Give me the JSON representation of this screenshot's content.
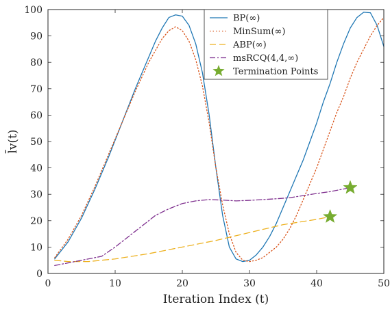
{
  "chart_data": {
    "type": "line",
    "xlabel": "Iteration Index (t)",
    "ylabel": "l̄v(t)",
    "xlim": [
      0,
      50
    ],
    "ylim": [
      0,
      100
    ],
    "xticks": [
      "0",
      "10",
      "20",
      "30",
      "40",
      "50"
    ],
    "yticks": [
      "0",
      "10",
      "20",
      "30",
      "40",
      "50",
      "60",
      "70",
      "80",
      "90",
      "100"
    ],
    "grid": false,
    "legend_position": "top-right",
    "series": [
      {
        "name": "BP(∞)",
        "color": "#1f77b4",
        "dash": "solid",
        "x": [
          1,
          3,
          5,
          7,
          9,
          11,
          13,
          15,
          16,
          17,
          18,
          19,
          20,
          21,
          22,
          23,
          24,
          25,
          26,
          27,
          28,
          29,
          30,
          31,
          32,
          33,
          34,
          35,
          36,
          37,
          38,
          39,
          40,
          41,
          42,
          43,
          44,
          45,
          46,
          47,
          48,
          49,
          50
        ],
        "y": [
          5.5,
          12,
          21,
          32,
          44,
          57,
          70,
          82,
          88,
          93,
          97,
          98,
          97.5,
          94,
          87,
          76,
          60,
          40,
          22,
          10,
          5.5,
          4.5,
          5,
          7,
          10,
          14,
          19,
          25,
          31,
          37,
          43,
          50,
          57,
          65,
          72,
          80,
          87,
          93,
          97,
          99,
          98.8,
          94,
          86
        ]
      },
      {
        "name": "MinSum(∞)",
        "color": "#d9541a",
        "dash": "dotted",
        "x": [
          1,
          3,
          5,
          7,
          9,
          11,
          13,
          15,
          17,
          18,
          19,
          20,
          21,
          22,
          23,
          24,
          25,
          26,
          27,
          28,
          29,
          30,
          31,
          32,
          33,
          34,
          35,
          36,
          37,
          38,
          39,
          40,
          41,
          42,
          43,
          44,
          45,
          46,
          47,
          48,
          49,
          50
        ],
        "y": [
          6,
          13,
          22,
          33,
          45,
          57,
          69,
          80,
          89,
          92,
          93.5,
          92,
          88,
          81,
          71,
          57,
          40,
          26,
          15,
          8,
          5,
          4.5,
          5,
          6,
          8,
          10,
          13,
          17,
          22,
          28,
          34,
          40,
          47,
          54,
          61,
          67,
          74,
          80,
          85,
          90,
          94,
          97
        ]
      },
      {
        "name": "ABP(∞)",
        "color": "#edb120",
        "dash": "dashed",
        "x": [
          1,
          3,
          6,
          10,
          15,
          20,
          25,
          30,
          35,
          40,
          42
        ],
        "y": [
          5,
          4.5,
          4.5,
          5.5,
          7.5,
          10,
          12.5,
          15.5,
          18.5,
          20.5,
          21.5
        ]
      },
      {
        "name": "msRCQ(4,4,∞)",
        "color": "#7e2f8e",
        "dash": "dashdot",
        "x": [
          1,
          3,
          5,
          8,
          10,
          12,
          14,
          16,
          18,
          20,
          22,
          24,
          26,
          28,
          30,
          32,
          34,
          36,
          38,
          40,
          42,
          44,
          45
        ],
        "y": [
          3,
          4,
          5,
          6.5,
          10,
          14,
          18,
          22,
          24.5,
          26.5,
          27.5,
          28,
          27.8,
          27.5,
          27.7,
          28,
          28.3,
          28.7,
          29.5,
          30.3,
          31,
          32,
          32.5
        ]
      }
    ],
    "termination_points": {
      "name": "Termination Points",
      "color": "#77ac30",
      "x": [
        42,
        45
      ],
      "y": [
        21.5,
        32.5
      ]
    }
  }
}
